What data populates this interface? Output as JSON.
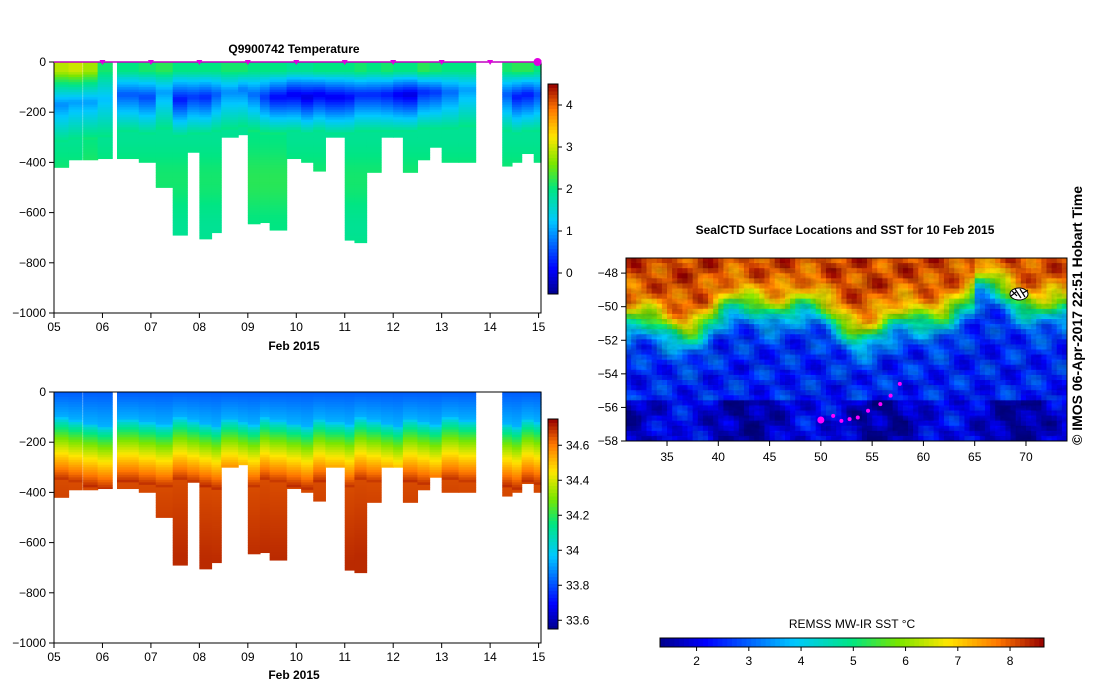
{
  "credit": "© IMOS 06-Apr-2017 22:51 Hobart Time",
  "chart_data": [
    {
      "id": "temperature",
      "type": "heatmap",
      "title": "Q9900742  Temperature",
      "xlabel": "Feb 2015",
      "x_ticks": [
        "05",
        "06",
        "07",
        "08",
        "09",
        "10",
        "11",
        "12",
        "13",
        "14",
        "15"
      ],
      "xlim": [
        5,
        15.05
      ],
      "ylim": [
        -1000,
        0
      ],
      "y_ticks": [
        0,
        -200,
        -400,
        -600,
        -800,
        -1000
      ],
      "y_tick_labels": [
        "0",
        "−200",
        "−400",
        "−600",
        "−800",
        "−1000"
      ],
      "colorbar": {
        "min": -0.5,
        "max": 4.5,
        "ticks": [
          0,
          1,
          2,
          3,
          4
        ],
        "tick_labels": [
          "0",
          "1",
          "2",
          "3",
          "4"
        ]
      },
      "surface_markers": [
        6,
        7,
        8,
        9,
        10,
        11,
        12,
        13,
        14,
        15
      ],
      "profiles": [
        {
          "t": 5.0,
          "w": 0.3,
          "depth": 420,
          "surface": 2.9,
          "min": 0.9,
          "min_depth": 170,
          "deep": 2.0
        },
        {
          "t": 5.3,
          "w": 0.28,
          "depth": 390,
          "surface": 3.0,
          "min": 1.0,
          "min_depth": 160,
          "deep": 2.0
        },
        {
          "t": 5.6,
          "w": 0.3,
          "depth": 390,
          "surface": 2.8,
          "min": 1.0,
          "min_depth": 160,
          "deep": 2.1
        },
        {
          "t": 5.9,
          "w": 0.3,
          "depth": 385,
          "surface": 2.1,
          "min": 1.2,
          "min_depth": 150,
          "deep": 2.0
        },
        {
          "t": 6.3,
          "w": 0.45,
          "depth": 385,
          "surface": 2.0,
          "min": 0.6,
          "min_depth": 130,
          "deep": 2.0
        },
        {
          "t": 6.75,
          "w": 0.35,
          "depth": 400,
          "surface": 2.1,
          "min": 0.5,
          "min_depth": 140,
          "deep": 2.0
        },
        {
          "t": 7.1,
          "w": 0.35,
          "depth": 500,
          "surface": 2.2,
          "min": 1.0,
          "min_depth": 120,
          "deep": 2.0
        },
        {
          "t": 7.45,
          "w": 0.3,
          "depth": 690,
          "surface": 2.0,
          "min": 0.2,
          "min_depth": 150,
          "deep": 2.0
        },
        {
          "t": 7.75,
          "w": 0.3,
          "depth": 360,
          "surface": 2.0,
          "min": 0.4,
          "min_depth": 140,
          "deep": 2.0
        },
        {
          "t": 8.0,
          "w": 0.25,
          "depth": 705,
          "surface": 2.0,
          "min": 0.3,
          "min_depth": 140,
          "deep": 2.0
        },
        {
          "t": 8.25,
          "w": 0.2,
          "depth": 680,
          "surface": 2.0,
          "min": 0.6,
          "min_depth": 130,
          "deep": 2.0
        },
        {
          "t": 8.45,
          "w": 0.35,
          "depth": 300,
          "surface": 2.1,
          "min": 0.9,
          "min_depth": 120,
          "deep": 2.0
        },
        {
          "t": 8.8,
          "w": 0.25,
          "depth": 290,
          "surface": 2.1,
          "min": 0.8,
          "min_depth": 110,
          "deep": 2.0
        },
        {
          "t": 9.0,
          "w": 0.25,
          "depth": 645,
          "surface": 2.0,
          "min": 0.7,
          "min_depth": 130,
          "deep": 2.1
        },
        {
          "t": 9.25,
          "w": 0.2,
          "depth": 640,
          "surface": 2.0,
          "min": 0.4,
          "min_depth": 140,
          "deep": 2.1
        },
        {
          "t": 9.45,
          "w": 0.35,
          "depth": 670,
          "surface": 2.0,
          "min": 0.1,
          "min_depth": 140,
          "deep": 2.1
        },
        {
          "t": 9.8,
          "w": 0.3,
          "depth": 385,
          "surface": 1.9,
          "min": 0.0,
          "min_depth": 130,
          "deep": 2.0
        },
        {
          "t": 10.1,
          "w": 0.25,
          "depth": 400,
          "surface": 1.9,
          "min": -0.1,
          "min_depth": 140,
          "deep": 2.0
        },
        {
          "t": 10.35,
          "w": 0.25,
          "depth": 435,
          "surface": 2.0,
          "min": 0.0,
          "min_depth": 130,
          "deep": 2.0
        },
        {
          "t": 10.6,
          "w": 0.4,
          "depth": 300,
          "surface": 2.0,
          "min": 0.0,
          "min_depth": 140,
          "deep": 2.0
        },
        {
          "t": 11.0,
          "w": 0.2,
          "depth": 710,
          "surface": 2.0,
          "min": 0.1,
          "min_depth": 140,
          "deep": 2.0
        },
        {
          "t": 11.2,
          "w": 0.25,
          "depth": 720,
          "surface": 2.1,
          "min": 0.3,
          "min_depth": 130,
          "deep": 2.0
        },
        {
          "t": 11.45,
          "w": 0.3,
          "depth": 440,
          "surface": 2.0,
          "min": 0.3,
          "min_depth": 130,
          "deep": 2.0
        },
        {
          "t": 11.75,
          "w": 0.25,
          "depth": 300,
          "surface": 2.1,
          "min": 0.2,
          "min_depth": 130,
          "deep": 2.0
        },
        {
          "t": 12.0,
          "w": 0.2,
          "depth": 300,
          "surface": 2.0,
          "min": 0.0,
          "min_depth": 130,
          "deep": 2.0
        },
        {
          "t": 12.2,
          "w": 0.3,
          "depth": 440,
          "surface": 2.0,
          "min": -0.1,
          "min_depth": 130,
          "deep": 2.0
        },
        {
          "t": 12.5,
          "w": 0.25,
          "depth": 390,
          "surface": 2.2,
          "min": 0.3,
          "min_depth": 120,
          "deep": 2.0
        },
        {
          "t": 12.75,
          "w": 0.25,
          "depth": 340,
          "surface": 2.1,
          "min": 0.4,
          "min_depth": 120,
          "deep": 2.0
        },
        {
          "t": 13.0,
          "w": 0.35,
          "depth": 400,
          "surface": 2.0,
          "min": 0.7,
          "min_depth": 120,
          "deep": 2.0
        },
        {
          "t": 13.35,
          "w": 0.35,
          "depth": 400,
          "surface": 2.0,
          "min": 1.0,
          "min_depth": 110,
          "deep": 2.0
        },
        {
          "t": 14.25,
          "w": 0.2,
          "depth": 415,
          "surface": 2.1,
          "min": 0.6,
          "min_depth": 130,
          "deep": 2.0
        },
        {
          "t": 14.45,
          "w": 0.2,
          "depth": 400,
          "surface": 2.2,
          "min": 0.2,
          "min_depth": 140,
          "deep": 2.0
        },
        {
          "t": 14.65,
          "w": 0.25,
          "depth": 365,
          "surface": 2.2,
          "min": 0.2,
          "min_depth": 130,
          "deep": 2.0
        },
        {
          "t": 14.9,
          "w": 0.15,
          "depth": 400,
          "surface": 2.0,
          "min": 0.5,
          "min_depth": 130,
          "deep": 2.0
        }
      ]
    },
    {
      "id": "salinity",
      "type": "heatmap",
      "title": "",
      "xlabel": "Feb 2015",
      "x_ticks": [
        "05",
        "06",
        "07",
        "08",
        "09",
        "10",
        "11",
        "12",
        "13",
        "14",
        "15"
      ],
      "xlim": [
        5,
        15.05
      ],
      "ylim": [
        -1000,
        0
      ],
      "y_ticks": [
        0,
        -200,
        -400,
        -600,
        -800,
        -1000
      ],
      "y_tick_labels": [
        "0",
        "−200",
        "−400",
        "−600",
        "−800",
        "−1000"
      ],
      "colorbar": {
        "min": 33.55,
        "max": 34.75,
        "ticks": [
          33.6,
          33.8,
          34,
          34.2,
          34.4,
          34.6
        ],
        "tick_labels": [
          "33.6",
          "33.8",
          "34",
          "34.2",
          "34.4",
          "34.6"
        ]
      },
      "surface_value": 33.82,
      "halocline_depth": 210,
      "deep_value": 34.7
    },
    {
      "id": "sst_map",
      "type": "heatmap",
      "title": "SealCTD Surface Locations and SST for 10 Feb 2015",
      "xlim": [
        31,
        74
      ],
      "ylim": [
        -58,
        -47.1
      ],
      "x_ticks": [
        35,
        40,
        45,
        50,
        55,
        60,
        65,
        70
      ],
      "y_ticks": [
        -48,
        -50,
        -52,
        -54,
        -56,
        -58
      ],
      "track": [
        {
          "lon": 50.0,
          "lat": -56.75
        },
        {
          "lon": 51.2,
          "lat": -56.5
        },
        {
          "lon": 52.0,
          "lat": -56.8
        },
        {
          "lon": 52.8,
          "lat": -56.7
        },
        {
          "lon": 53.6,
          "lat": -56.6
        },
        {
          "lon": 54.6,
          "lat": -56.2
        },
        {
          "lon": 55.8,
          "lat": -55.8
        },
        {
          "lon": 56.8,
          "lat": -55.3
        },
        {
          "lon": 57.7,
          "lat": -54.6
        }
      ],
      "colorbar": {
        "label": "REMSS MW-IR SST °C",
        "min": 1.3,
        "max": 8.65,
        "ticks": [
          2,
          3,
          4,
          5,
          6,
          7,
          8
        ],
        "tick_labels": [
          "2",
          "3",
          "4",
          "5",
          "6",
          "7",
          "8"
        ]
      }
    }
  ]
}
